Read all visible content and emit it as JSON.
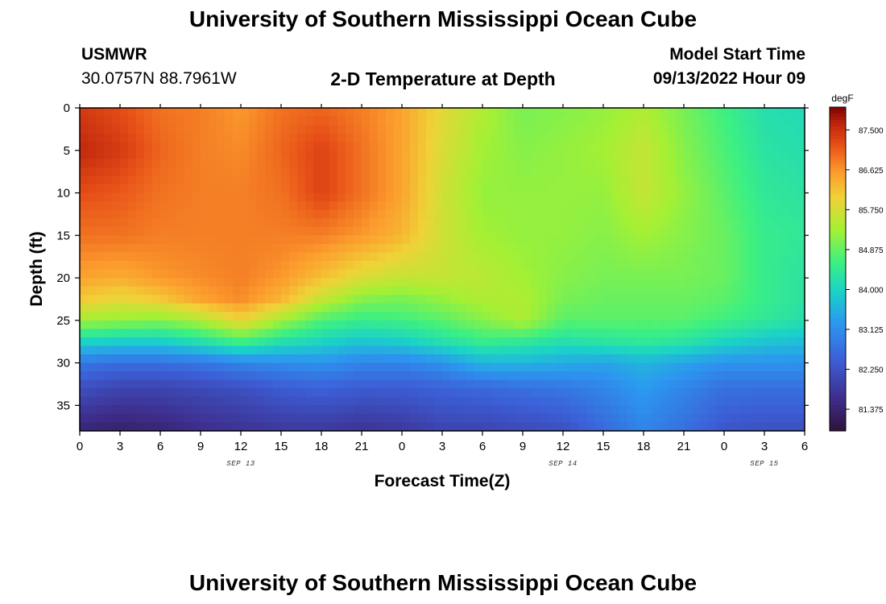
{
  "page": {
    "title": "University of Southern Mississippi Ocean Cube",
    "footer_title": "University of Southern Mississippi Ocean Cube"
  },
  "header": {
    "station": "USMWR",
    "location": "30.0757N  88.7961W",
    "plot_title": "2-D Temperature at Depth",
    "model_label": "Model Start Time",
    "model_time": "09/13/2022 Hour 09"
  },
  "chart_data": {
    "type": "heatmap",
    "title": "2-D Temperature at Depth",
    "xlabel": "Forecast Time(Z)",
    "ylabel": "Depth (ft)",
    "x_hours": [
      0,
      3,
      6,
      9,
      12,
      15,
      18,
      21,
      24,
      27,
      30,
      33,
      36,
      39,
      42,
      45,
      48,
      51,
      54
    ],
    "x_tick_labels": [
      "0",
      "3",
      "6",
      "9",
      "12",
      "15",
      "18",
      "21",
      "0",
      "3",
      "6",
      "9",
      "12",
      "15",
      "18",
      "21",
      "0",
      "3",
      "6"
    ],
    "xlim": [
      0,
      54
    ],
    "date_labels": [
      {
        "text": "SEP 13",
        "hour": 12
      },
      {
        "text": "SEP 14",
        "hour": 36
      },
      {
        "text": "SEP 15",
        "hour": 51
      }
    ],
    "ylim": [
      0,
      38
    ],
    "y_ticks": [
      0,
      5,
      10,
      15,
      20,
      25,
      30,
      35
    ],
    "colorbar": {
      "unit": "degF",
      "min": 80.9,
      "max": 88.0,
      "ticks": [
        81.375,
        82.25,
        83.125,
        84.0,
        84.875,
        85.75,
        86.625,
        87.5
      ],
      "tick_labels": [
        "81.375",
        "82.250",
        "83.125",
        "84.000",
        "84.875",
        "85.750",
        "86.625",
        "87.500"
      ]
    },
    "grid_depths_ft": [
      0,
      5,
      10,
      15,
      20,
      22.5,
      25,
      27.5,
      30,
      33,
      38
    ],
    "temperature_degF": [
      {
        "hour": 0,
        "values": [
          87.4,
          87.6,
          87.2,
          86.9,
          86.5,
          86.1,
          85.3,
          84.0,
          82.8,
          82.2,
          81.4
        ]
      },
      {
        "hour": 3,
        "values": [
          87.2,
          87.4,
          87.1,
          86.9,
          86.4,
          85.9,
          85.2,
          83.9,
          82.7,
          82.0,
          81.3
        ]
      },
      {
        "hour": 6,
        "values": [
          86.9,
          87.0,
          86.9,
          86.8,
          86.6,
          86.1,
          85.1,
          83.9,
          82.7,
          82.0,
          81.4
        ]
      },
      {
        "hour": 9,
        "values": [
          86.8,
          86.8,
          86.8,
          86.8,
          86.7,
          86.5,
          85.4,
          84.2,
          82.8,
          82.1,
          81.6
        ]
      },
      {
        "hour": 12,
        "values": [
          86.6,
          86.7,
          86.8,
          86.8,
          86.8,
          86.7,
          86.0,
          84.6,
          83.0,
          82.2,
          81.7
        ]
      },
      {
        "hour": 15,
        "values": [
          86.9,
          87.0,
          86.9,
          86.8,
          86.6,
          86.3,
          85.3,
          84.2,
          83.1,
          82.4,
          81.8
        ]
      },
      {
        "hour": 18,
        "values": [
          87.0,
          87.3,
          87.3,
          86.8,
          86.2,
          85.6,
          84.7,
          84.0,
          83.2,
          82.5,
          81.8
        ]
      },
      {
        "hour": 21,
        "values": [
          86.8,
          86.9,
          86.9,
          86.6,
          85.8,
          85.1,
          84.5,
          83.8,
          83.0,
          82.4,
          81.7
        ]
      },
      {
        "hour": 24,
        "values": [
          86.5,
          86.5,
          86.5,
          86.3,
          85.6,
          85.0,
          84.6,
          83.9,
          83.0,
          82.4,
          81.8
        ]
      },
      {
        "hour": 27,
        "values": [
          85.9,
          85.8,
          85.7,
          85.7,
          85.6,
          85.2,
          84.8,
          84.2,
          83.2,
          82.5,
          82.0
        ]
      },
      {
        "hour": 30,
        "values": [
          85.4,
          85.3,
          85.2,
          85.3,
          85.5,
          85.4,
          85.1,
          84.5,
          83.6,
          82.6,
          82.0
        ]
      },
      {
        "hour": 33,
        "values": [
          85.0,
          85.1,
          85.2,
          85.2,
          85.3,
          85.4,
          85.4,
          84.4,
          83.6,
          82.7,
          82.1
        ]
      },
      {
        "hour": 36,
        "values": [
          85.1,
          85.2,
          85.2,
          85.2,
          85.1,
          85.0,
          84.8,
          84.2,
          83.5,
          82.8,
          82.2
        ]
      },
      {
        "hour": 39,
        "values": [
          85.2,
          85.3,
          85.2,
          85.1,
          85.0,
          84.9,
          84.8,
          84.3,
          83.4,
          83.0,
          82.6
        ]
      },
      {
        "hour": 42,
        "values": [
          85.4,
          85.6,
          85.6,
          85.3,
          85.0,
          84.9,
          84.8,
          84.4,
          83.6,
          83.3,
          83.0
        ]
      },
      {
        "hour": 45,
        "values": [
          85.0,
          85.1,
          85.2,
          85.1,
          85.0,
          84.9,
          84.8,
          84.3,
          83.4,
          83.0,
          82.7
        ]
      },
      {
        "hour": 48,
        "values": [
          84.6,
          84.7,
          84.8,
          84.9,
          84.9,
          84.8,
          84.6,
          84.0,
          83.2,
          82.7,
          82.3
        ]
      },
      {
        "hour": 51,
        "values": [
          84.2,
          84.3,
          84.4,
          84.5,
          84.5,
          84.5,
          84.4,
          83.8,
          83.2,
          82.7,
          82.2
        ]
      },
      {
        "hour": 54,
        "values": [
          84.1,
          84.2,
          84.3,
          84.4,
          84.3,
          84.3,
          84.2,
          83.7,
          83.2,
          82.7,
          82.2
        ]
      }
    ]
  }
}
